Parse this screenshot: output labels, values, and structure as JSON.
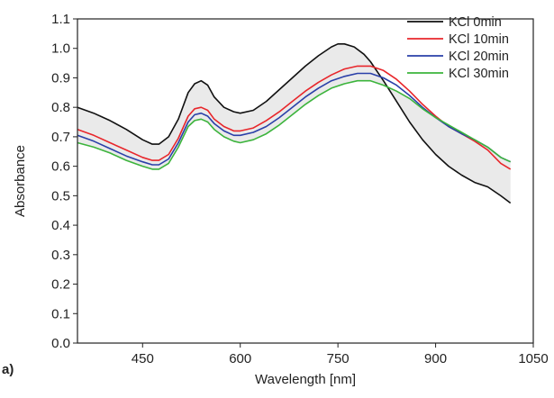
{
  "chart_data": {
    "type": "line",
    "panel_label": "a)",
    "xlabel": "Wavelength [nm]",
    "ylabel": "Absorbance",
    "xlim": [
      350,
      1050
    ],
    "ylim": [
      0.0,
      1.1
    ],
    "xticks": [
      450,
      600,
      750,
      900,
      1050
    ],
    "yticks": [
      0.0,
      0.1,
      0.2,
      0.3,
      0.4,
      0.5,
      0.6,
      0.7,
      0.8,
      0.9,
      1.0,
      1.1
    ],
    "grid": false,
    "legend_position": "top-right",
    "shaded_region": {
      "between": [
        "KCl 0min",
        "KCl 30min"
      ],
      "color": "#d9d9d9"
    },
    "series": [
      {
        "name": "KCl 0min",
        "color": "#111111",
        "x": [
          350,
          375,
          400,
          425,
          450,
          465,
          475,
          490,
          505,
          520,
          530,
          540,
          550,
          560,
          575,
          590,
          600,
          620,
          640,
          660,
          680,
          700,
          720,
          740,
          750,
          760,
          775,
          790,
          800,
          820,
          840,
          860,
          880,
          900,
          920,
          940,
          960,
          980,
          1000,
          1015
        ],
        "y": [
          0.8,
          0.78,
          0.755,
          0.725,
          0.69,
          0.675,
          0.675,
          0.7,
          0.76,
          0.85,
          0.88,
          0.89,
          0.875,
          0.835,
          0.8,
          0.785,
          0.78,
          0.79,
          0.82,
          0.86,
          0.9,
          0.94,
          0.975,
          1.005,
          1.015,
          1.015,
          1.005,
          0.98,
          0.955,
          0.89,
          0.82,
          0.75,
          0.69,
          0.64,
          0.6,
          0.57,
          0.545,
          0.53,
          0.5,
          0.475
        ]
      },
      {
        "name": "KCl 10min",
        "color": "#e8262b",
        "x": [
          350,
          375,
          400,
          425,
          450,
          465,
          475,
          490,
          505,
          520,
          530,
          540,
          550,
          560,
          575,
          590,
          600,
          620,
          640,
          660,
          680,
          700,
          720,
          740,
          760,
          780,
          800,
          820,
          840,
          860,
          880,
          900,
          920,
          940,
          960,
          980,
          1000,
          1015
        ],
        "y": [
          0.725,
          0.705,
          0.68,
          0.655,
          0.63,
          0.62,
          0.62,
          0.64,
          0.695,
          0.77,
          0.795,
          0.8,
          0.79,
          0.76,
          0.735,
          0.72,
          0.72,
          0.73,
          0.755,
          0.785,
          0.82,
          0.855,
          0.885,
          0.91,
          0.93,
          0.94,
          0.94,
          0.925,
          0.895,
          0.855,
          0.81,
          0.77,
          0.735,
          0.71,
          0.685,
          0.655,
          0.61,
          0.59
        ]
      },
      {
        "name": "KCl 20min",
        "color": "#2a3fa8",
        "x": [
          350,
          375,
          400,
          425,
          450,
          465,
          475,
          490,
          505,
          520,
          530,
          540,
          550,
          560,
          575,
          590,
          600,
          620,
          640,
          660,
          680,
          700,
          720,
          740,
          760,
          780,
          800,
          820,
          840,
          860,
          880,
          900,
          920,
          940,
          960,
          980,
          1000,
          1015
        ],
        "y": [
          0.705,
          0.685,
          0.66,
          0.635,
          0.615,
          0.605,
          0.605,
          0.625,
          0.68,
          0.75,
          0.775,
          0.78,
          0.77,
          0.745,
          0.72,
          0.705,
          0.705,
          0.715,
          0.735,
          0.765,
          0.8,
          0.835,
          0.865,
          0.89,
          0.905,
          0.915,
          0.915,
          0.9,
          0.875,
          0.84,
          0.8,
          0.765,
          0.735,
          0.71,
          0.69,
          0.665,
          0.63,
          0.615
        ]
      },
      {
        "name": "KCl 30min",
        "color": "#3cb43c",
        "x": [
          350,
          375,
          400,
          425,
          450,
          465,
          475,
          490,
          505,
          520,
          530,
          540,
          550,
          560,
          575,
          590,
          600,
          620,
          640,
          660,
          680,
          700,
          720,
          740,
          760,
          780,
          800,
          820,
          840,
          860,
          880,
          900,
          920,
          940,
          960,
          980,
          1000,
          1015
        ],
        "y": [
          0.68,
          0.665,
          0.645,
          0.62,
          0.6,
          0.59,
          0.59,
          0.61,
          0.665,
          0.735,
          0.755,
          0.76,
          0.75,
          0.725,
          0.7,
          0.685,
          0.68,
          0.69,
          0.71,
          0.74,
          0.775,
          0.81,
          0.84,
          0.865,
          0.88,
          0.89,
          0.89,
          0.875,
          0.855,
          0.83,
          0.795,
          0.765,
          0.74,
          0.715,
          0.69,
          0.665,
          0.63,
          0.615
        ]
      }
    ]
  }
}
